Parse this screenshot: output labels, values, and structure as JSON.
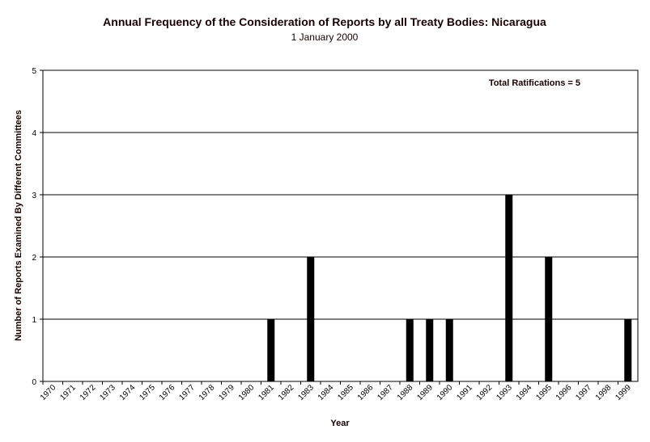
{
  "chart_data": {
    "type": "bar",
    "title": "Annual Frequency of the Consideration of Reports by all Treaty Bodies: Nicaragua",
    "subtitle": "1 January 2000",
    "xlabel": "Year",
    "ylabel": "Number of Reports Examined By Different Committees",
    "ylim": [
      0,
      5
    ],
    "yticks": [
      "0",
      "1",
      "2",
      "3",
      "4",
      "5"
    ],
    "grid": true,
    "annotation": "Total Ratifications = 5",
    "bar_color": "#000000",
    "gridline_color": "#000000",
    "categories": [
      "1970",
      "1971",
      "1972",
      "1973",
      "1974",
      "1975",
      "1976",
      "1977",
      "1978",
      "1979",
      "1980",
      "1981",
      "1982",
      "1983",
      "1984",
      "1985",
      "1986",
      "1987",
      "1988",
      "1989",
      "1990",
      "1991",
      "1992",
      "1993",
      "1994",
      "1995",
      "1996",
      "1997",
      "1998",
      "1999"
    ],
    "values": [
      0,
      0,
      0,
      0,
      0,
      0,
      0,
      0,
      0,
      0,
      0,
      1,
      0,
      2,
      0,
      0,
      0,
      0,
      1,
      1,
      1,
      0,
      0,
      3,
      0,
      2,
      0,
      0,
      0,
      1
    ]
  }
}
